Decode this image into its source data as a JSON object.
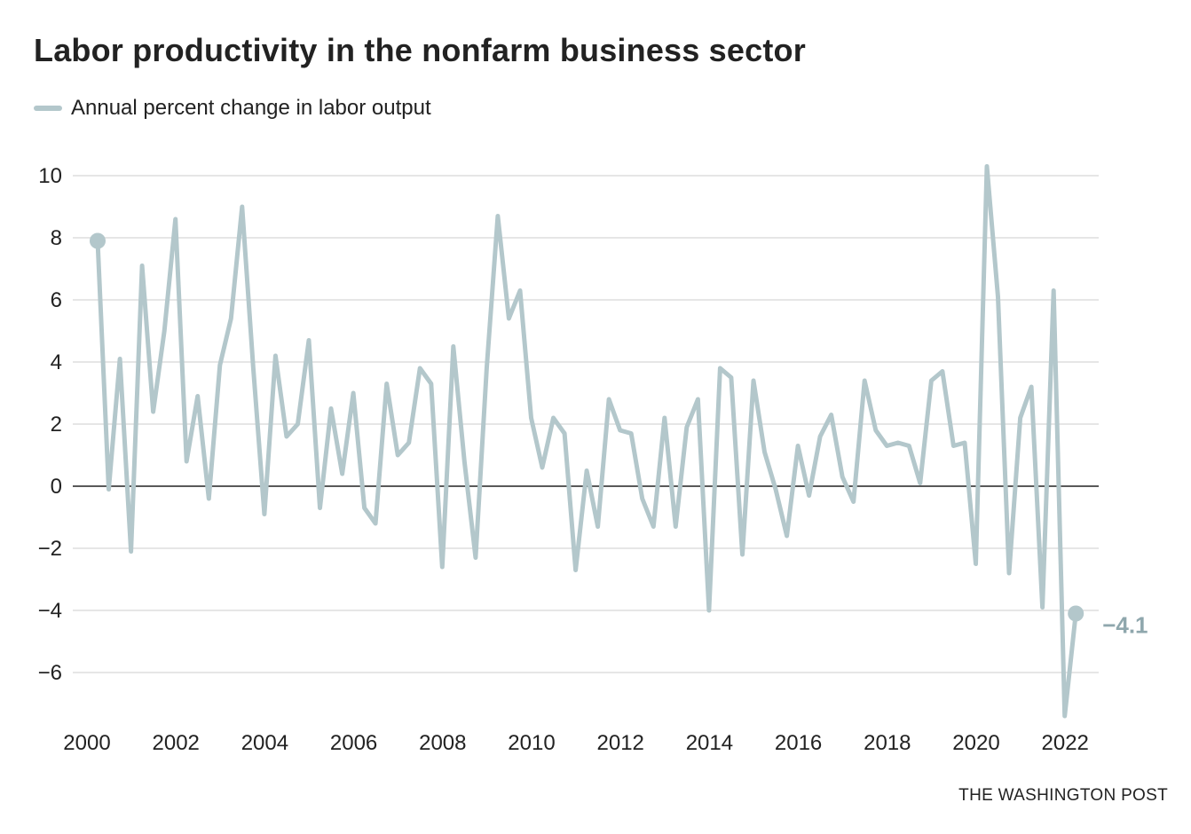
{
  "title": "Labor productivity in the nonfarm business sector",
  "source": "THE WASHINGTON POST",
  "colors": {
    "series": "#b3c7cb",
    "grid": "#dddddd",
    "zero": "#222222",
    "label": "#8fa7ad"
  },
  "chart_data": {
    "type": "line",
    "title": "Labor productivity in the nonfarm business sector",
    "xlabel": "",
    "ylabel": "",
    "xlim": [
      2000,
      2022.75
    ],
    "ylim": [
      -7.5,
      10.5
    ],
    "y_ticks": [
      10,
      8,
      6,
      4,
      2,
      0,
      -2,
      -4,
      -6
    ],
    "y_tick_labels": [
      "10",
      "8",
      "6",
      "4",
      "2",
      "0",
      "−2",
      "−4",
      "−6"
    ],
    "x_ticks": [
      2000,
      2002,
      2004,
      2006,
      2008,
      2010,
      2012,
      2014,
      2016,
      2018,
      2020,
      2022
    ],
    "x_tick_labels": [
      "2000",
      "2002",
      "2004",
      "2006",
      "2008",
      "2010",
      "2012",
      "2014",
      "2016",
      "2018",
      "2020",
      "2022"
    ],
    "grid": true,
    "legend_position": "top-left",
    "series": [
      {
        "name": "Annual percent change in labor output",
        "start": "2000 Q1",
        "frequency": "quarterly",
        "values": [
          7.9,
          -0.1,
          4.1,
          -2.1,
          7.1,
          2.4,
          5.0,
          8.6,
          0.8,
          2.9,
          -0.4,
          3.9,
          5.4,
          9.0,
          3.8,
          -0.9,
          4.2,
          1.6,
          2.0,
          4.7,
          -0.7,
          2.5,
          0.4,
          3.0,
          -0.7,
          -1.2,
          3.3,
          1.0,
          1.4,
          3.8,
          3.3,
          -2.6,
          4.5,
          0.8,
          -2.3,
          3.8,
          8.7,
          5.4,
          6.3,
          2.2,
          0.6,
          2.2,
          1.7,
          -2.7,
          0.5,
          -1.3,
          2.8,
          1.8,
          1.7,
          -0.4,
          -1.3,
          2.2,
          -1.3,
          1.9,
          2.8,
          -4.0,
          3.8,
          3.5,
          -2.2,
          3.4,
          1.1,
          -0.1,
          -1.6,
          1.3,
          -0.3,
          1.6,
          2.3,
          0.3,
          -0.5,
          3.4,
          1.8,
          1.3,
          1.4,
          1.3,
          0.1,
          3.4,
          3.7,
          1.3,
          1.4,
          -2.5,
          10.3,
          6.1,
          -2.8,
          2.2,
          3.2,
          -3.9,
          6.3,
          -7.4,
          -4.1
        ]
      }
    ],
    "annotations": [
      {
        "label": "2000 Q1 start point",
        "value": 7.9,
        "text": ""
      },
      {
        "label": "2022 Q2 end point",
        "value": -4.1,
        "text": "−4.1"
      }
    ]
  }
}
